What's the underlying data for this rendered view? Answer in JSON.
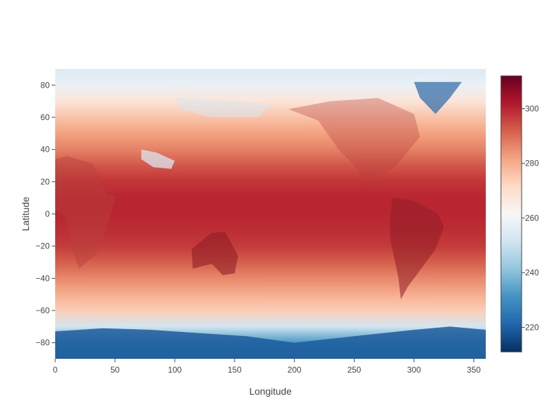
{
  "chart_data": {
    "type": "heatmap",
    "title": "",
    "xlabel": "Longitude",
    "ylabel": "Latitude",
    "xlim": [
      0,
      360
    ],
    "ylim": [
      -90,
      90
    ],
    "x_ticks": [
      0,
      50,
      100,
      150,
      200,
      250,
      300,
      350
    ],
    "y_ticks": [
      -80,
      -60,
      -40,
      -20,
      0,
      20,
      40,
      60,
      80
    ],
    "colorbar": {
      "range": [
        211,
        312
      ],
      "ticks": [
        220,
        240,
        260,
        280,
        300
      ],
      "colorscale": "RdBu_r",
      "stops": [
        "#053061",
        "#2166ac",
        "#4393c3",
        "#92c5de",
        "#d1e5f0",
        "#f7f7f7",
        "#fddbc7",
        "#f4a582",
        "#d6604d",
        "#b2182b",
        "#67001f"
      ]
    },
    "grid": false,
    "zonal_profile": {
      "lat": [
        -90,
        -80,
        -70,
        -60,
        -50,
        -40,
        -30,
        -20,
        -10,
        0,
        10,
        20,
        30,
        40,
        50,
        60,
        70,
        80,
        90
      ],
      "value": [
        226,
        232,
        252,
        274,
        280,
        286,
        292,
        297,
        299,
        300,
        300,
        298,
        293,
        287,
        282,
        276,
        268,
        258,
        254
      ]
    }
  }
}
